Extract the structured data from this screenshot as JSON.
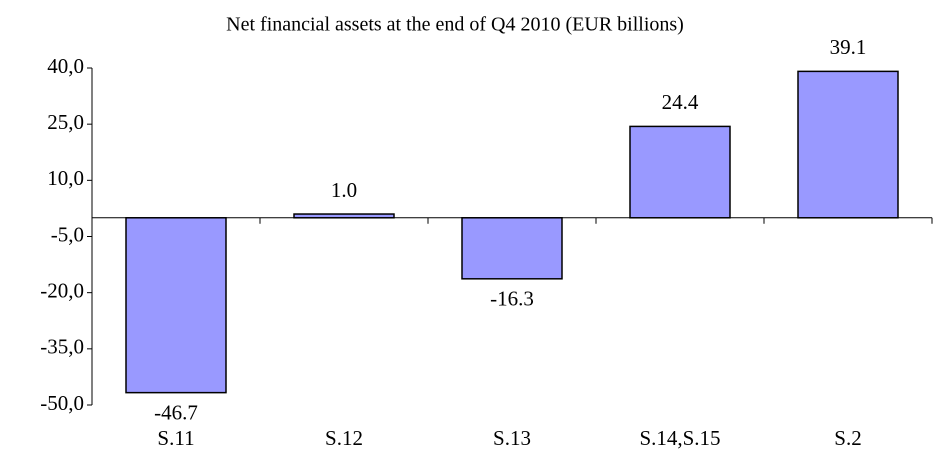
{
  "chart_data": {
    "type": "bar",
    "title": "Net financial assets at the end of Q4 2010 (EUR billions)",
    "categories": [
      "S.11",
      "S.12",
      "S.13",
      "S.14,S.15",
      "S.2"
    ],
    "values": [
      -46.7,
      1.0,
      -16.3,
      24.4,
      39.1
    ],
    "value_labels": [
      "-46.7",
      "1.0",
      "-16.3",
      "24.4",
      "39.1"
    ],
    "color": "#9999ff",
    "ylim": [
      -50,
      40
    ],
    "yticks": [
      {
        "value": 40,
        "label": "40,0"
      },
      {
        "value": 25,
        "label": "25,0"
      },
      {
        "value": 10,
        "label": "10,0"
      },
      {
        "value": -5,
        "label": "-5,0"
      },
      {
        "value": -20,
        "label": "-20,0"
      },
      {
        "value": -35,
        "label": "-35,0"
      },
      {
        "value": -50,
        "label": "-50,0"
      }
    ],
    "grid": false
  }
}
